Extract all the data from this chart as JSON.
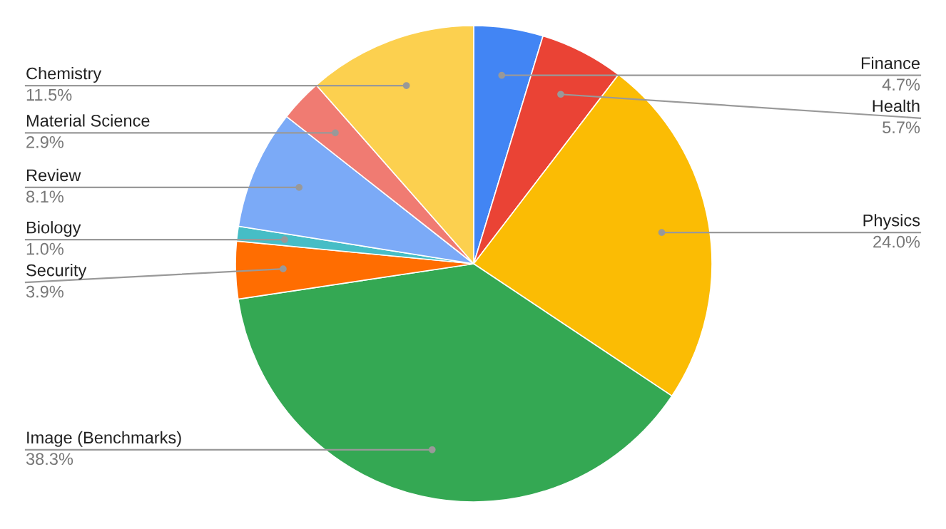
{
  "chart_data": {
    "type": "pie",
    "categories": [
      "Finance",
      "Health",
      "Physics",
      "Image (Benchmarks)",
      "Security",
      "Biology",
      "Review",
      "Material Science",
      "Chemistry"
    ],
    "values": [
      4.7,
      5.7,
      24.0,
      38.3,
      3.9,
      1.0,
      8.1,
      2.9,
      11.5
    ],
    "colors": [
      "#4285f4",
      "#ea4335",
      "#fbbc04",
      "#34a853",
      "#ff6d01",
      "#46bdc6",
      "#7baaf7",
      "#f07b72",
      "#fcd04f"
    ],
    "value_labels": [
      "4.7%",
      "5.7%",
      "24.0%",
      "38.3%",
      "3.9%",
      "1.0%",
      "8.1%",
      "2.9%",
      "11.5%"
    ],
    "legend": false
  }
}
